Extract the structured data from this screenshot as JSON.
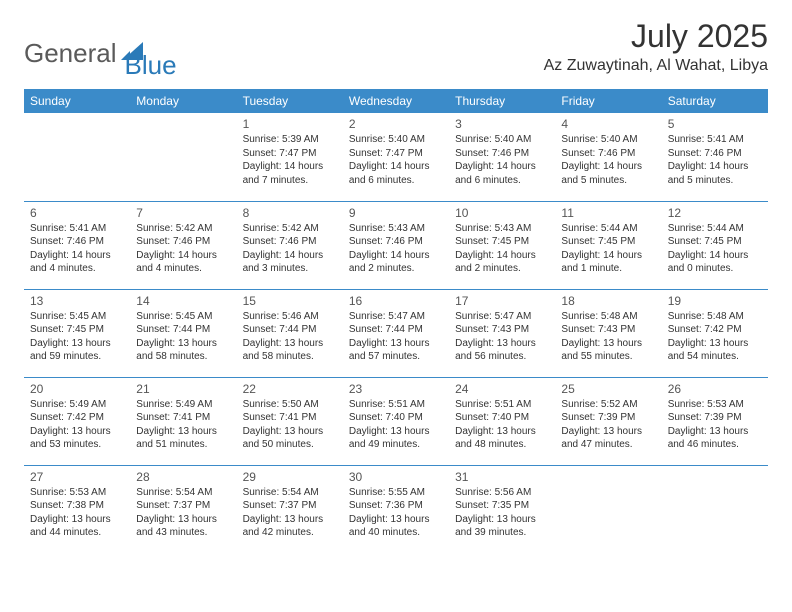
{
  "brand": {
    "word1": "General",
    "word2": "Blue",
    "word1_color": "#5a5a5a",
    "word2_color": "#2a7ab8",
    "shape_color": "#2a7ab8"
  },
  "header": {
    "title": "July 2025",
    "location": "Az Zuwaytinah, Al Wahat, Libya",
    "title_color": "#333333",
    "title_fontsize": 32,
    "location_fontsize": 16
  },
  "day_names": [
    "Sunday",
    "Monday",
    "Tuesday",
    "Wednesday",
    "Thursday",
    "Friday",
    "Saturday"
  ],
  "colors": {
    "header_bg": "#3b8bc9",
    "header_text": "#ffffff",
    "row_divider": "#3b8bc9",
    "body_text": "#333333",
    "daynum_text": "#555555"
  },
  "weeks": [
    [
      null,
      null,
      {
        "n": "1",
        "sunrise": "5:39 AM",
        "sunset": "7:47 PM",
        "daylight": "14 hours and 7 minutes."
      },
      {
        "n": "2",
        "sunrise": "5:40 AM",
        "sunset": "7:47 PM",
        "daylight": "14 hours and 6 minutes."
      },
      {
        "n": "3",
        "sunrise": "5:40 AM",
        "sunset": "7:46 PM",
        "daylight": "14 hours and 6 minutes."
      },
      {
        "n": "4",
        "sunrise": "5:40 AM",
        "sunset": "7:46 PM",
        "daylight": "14 hours and 5 minutes."
      },
      {
        "n": "5",
        "sunrise": "5:41 AM",
        "sunset": "7:46 PM",
        "daylight": "14 hours and 5 minutes."
      }
    ],
    [
      {
        "n": "6",
        "sunrise": "5:41 AM",
        "sunset": "7:46 PM",
        "daylight": "14 hours and 4 minutes."
      },
      {
        "n": "7",
        "sunrise": "5:42 AM",
        "sunset": "7:46 PM",
        "daylight": "14 hours and 4 minutes."
      },
      {
        "n": "8",
        "sunrise": "5:42 AM",
        "sunset": "7:46 PM",
        "daylight": "14 hours and 3 minutes."
      },
      {
        "n": "9",
        "sunrise": "5:43 AM",
        "sunset": "7:46 PM",
        "daylight": "14 hours and 2 minutes."
      },
      {
        "n": "10",
        "sunrise": "5:43 AM",
        "sunset": "7:45 PM",
        "daylight": "14 hours and 2 minutes."
      },
      {
        "n": "11",
        "sunrise": "5:44 AM",
        "sunset": "7:45 PM",
        "daylight": "14 hours and 1 minute."
      },
      {
        "n": "12",
        "sunrise": "5:44 AM",
        "sunset": "7:45 PM",
        "daylight": "14 hours and 0 minutes."
      }
    ],
    [
      {
        "n": "13",
        "sunrise": "5:45 AM",
        "sunset": "7:45 PM",
        "daylight": "13 hours and 59 minutes."
      },
      {
        "n": "14",
        "sunrise": "5:45 AM",
        "sunset": "7:44 PM",
        "daylight": "13 hours and 58 minutes."
      },
      {
        "n": "15",
        "sunrise": "5:46 AM",
        "sunset": "7:44 PM",
        "daylight": "13 hours and 58 minutes."
      },
      {
        "n": "16",
        "sunrise": "5:47 AM",
        "sunset": "7:44 PM",
        "daylight": "13 hours and 57 minutes."
      },
      {
        "n": "17",
        "sunrise": "5:47 AM",
        "sunset": "7:43 PM",
        "daylight": "13 hours and 56 minutes."
      },
      {
        "n": "18",
        "sunrise": "5:48 AM",
        "sunset": "7:43 PM",
        "daylight": "13 hours and 55 minutes."
      },
      {
        "n": "19",
        "sunrise": "5:48 AM",
        "sunset": "7:42 PM",
        "daylight": "13 hours and 54 minutes."
      }
    ],
    [
      {
        "n": "20",
        "sunrise": "5:49 AM",
        "sunset": "7:42 PM",
        "daylight": "13 hours and 53 minutes."
      },
      {
        "n": "21",
        "sunrise": "5:49 AM",
        "sunset": "7:41 PM",
        "daylight": "13 hours and 51 minutes."
      },
      {
        "n": "22",
        "sunrise": "5:50 AM",
        "sunset": "7:41 PM",
        "daylight": "13 hours and 50 minutes."
      },
      {
        "n": "23",
        "sunrise": "5:51 AM",
        "sunset": "7:40 PM",
        "daylight": "13 hours and 49 minutes."
      },
      {
        "n": "24",
        "sunrise": "5:51 AM",
        "sunset": "7:40 PM",
        "daylight": "13 hours and 48 minutes."
      },
      {
        "n": "25",
        "sunrise": "5:52 AM",
        "sunset": "7:39 PM",
        "daylight": "13 hours and 47 minutes."
      },
      {
        "n": "26",
        "sunrise": "5:53 AM",
        "sunset": "7:39 PM",
        "daylight": "13 hours and 46 minutes."
      }
    ],
    [
      {
        "n": "27",
        "sunrise": "5:53 AM",
        "sunset": "7:38 PM",
        "daylight": "13 hours and 44 minutes."
      },
      {
        "n": "28",
        "sunrise": "5:54 AM",
        "sunset": "7:37 PM",
        "daylight": "13 hours and 43 minutes."
      },
      {
        "n": "29",
        "sunrise": "5:54 AM",
        "sunset": "7:37 PM",
        "daylight": "13 hours and 42 minutes."
      },
      {
        "n": "30",
        "sunrise": "5:55 AM",
        "sunset": "7:36 PM",
        "daylight": "13 hours and 40 minutes."
      },
      {
        "n": "31",
        "sunrise": "5:56 AM",
        "sunset": "7:35 PM",
        "daylight": "13 hours and 39 minutes."
      },
      null,
      null
    ]
  ],
  "labels": {
    "sunrise_prefix": "Sunrise: ",
    "sunset_prefix": "Sunset: ",
    "daylight_prefix": "Daylight: "
  }
}
